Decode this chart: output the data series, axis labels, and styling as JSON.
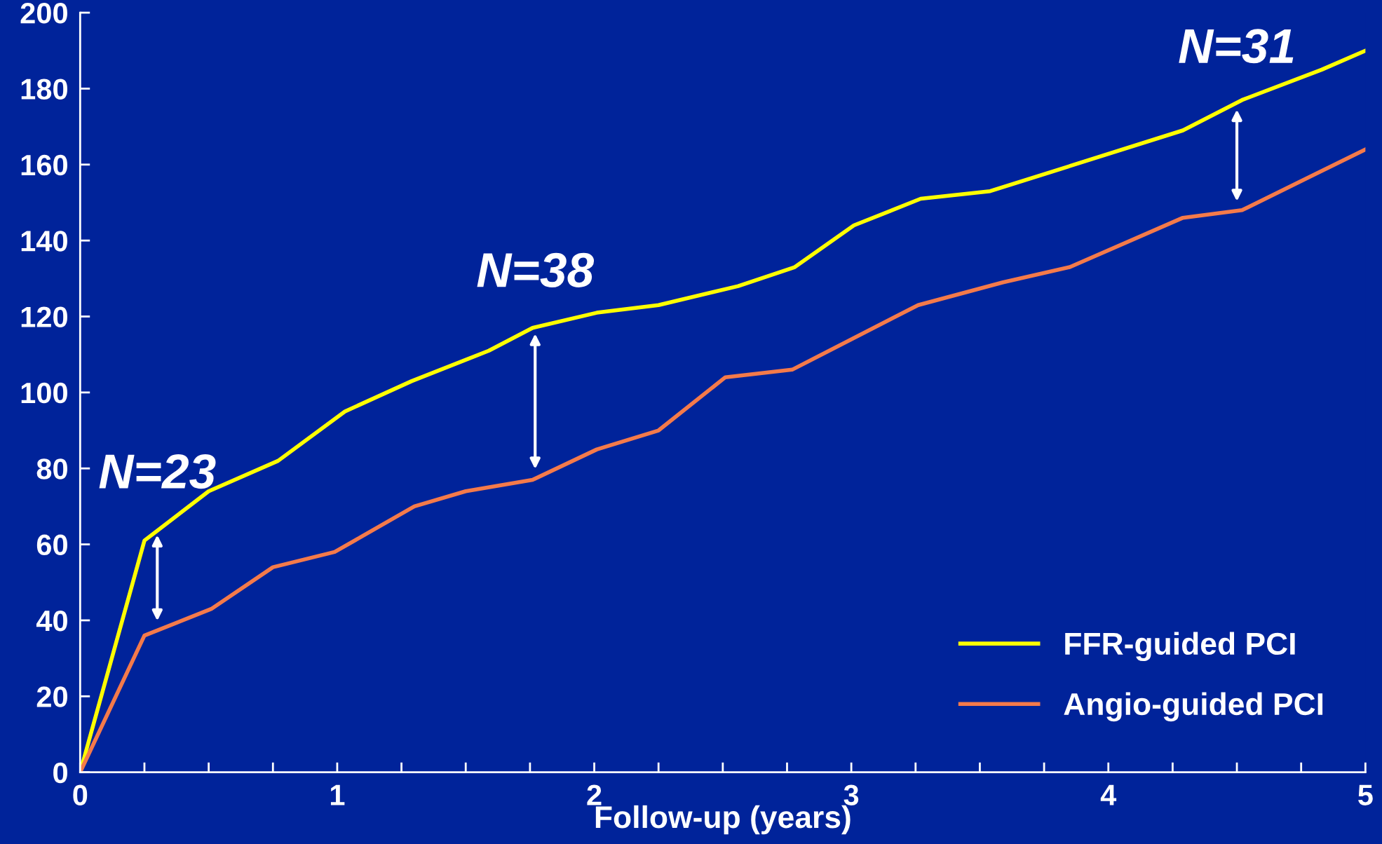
{
  "chart_data": {
    "type": "line",
    "xlabel": "Follow-up (years)",
    "xlim": [
      0,
      5
    ],
    "ylim": [
      0,
      200
    ],
    "xticks": [
      0,
      {
        "value": 0.25,
        "label": null
      },
      {
        "value": 0.5,
        "label": null
      },
      {
        "value": 0.75,
        "label": null
      },
      1,
      {
        "value": 1.25,
        "label": null
      },
      {
        "value": 1.5,
        "label": null
      },
      {
        "value": 1.75,
        "label": null
      },
      2,
      {
        "value": 2.25,
        "label": null
      },
      {
        "value": 2.5,
        "label": null
      },
      {
        "value": 2.75,
        "label": null
      },
      3,
      {
        "value": 3.25,
        "label": null
      },
      {
        "value": 3.5,
        "label": null
      },
      {
        "value": 3.75,
        "label": null
      },
      4,
      {
        "value": 4.25,
        "label": null
      },
      {
        "value": 4.5,
        "label": null
      },
      {
        "value": 4.75,
        "label": null
      },
      5
    ],
    "yticks": [
      0,
      20,
      40,
      60,
      80,
      100,
      120,
      140,
      160,
      180,
      200
    ],
    "grid": false,
    "legend": "bottom right",
    "marker": "none",
    "line_style": "solid",
    "series": [
      {
        "name": "FFR-guided PCI",
        "color": "#ffff00",
        "x": [
          0,
          0.25,
          0.5,
          0.77,
          1.03,
          1.29,
          1.59,
          1.76,
          2.01,
          2.25,
          2.56,
          2.78,
          3.01,
          3.27,
          3.54,
          4.29,
          4.52,
          4.83,
          5
        ],
        "values": [
          0,
          61,
          74,
          82,
          95,
          103,
          111,
          117,
          121,
          123,
          128,
          133,
          144,
          151,
          153,
          169,
          177,
          185,
          190
        ]
      },
      {
        "name": "Angio-guided PCI",
        "color": "#f47a4a",
        "x": [
          0,
          0.25,
          0.51,
          0.75,
          0.99,
          1.3,
          1.5,
          1.76,
          2.01,
          2.25,
          2.51,
          2.77,
          3.26,
          3.59,
          3.85,
          4.29,
          4.52,
          5
        ],
        "values": [
          0,
          36,
          43,
          54,
          58,
          70,
          74,
          77,
          85,
          90,
          104,
          106,
          123,
          129,
          133,
          146,
          148,
          164
        ]
      }
    ],
    "annotations": [
      {
        "text": "N=23",
        "x": 0.3,
        "y": 64
      },
      {
        "text": "N=38",
        "x": 1.77,
        "y": 117
      },
      {
        "text": "N=31",
        "x": 4.5,
        "y": 176
      }
    ]
  }
}
